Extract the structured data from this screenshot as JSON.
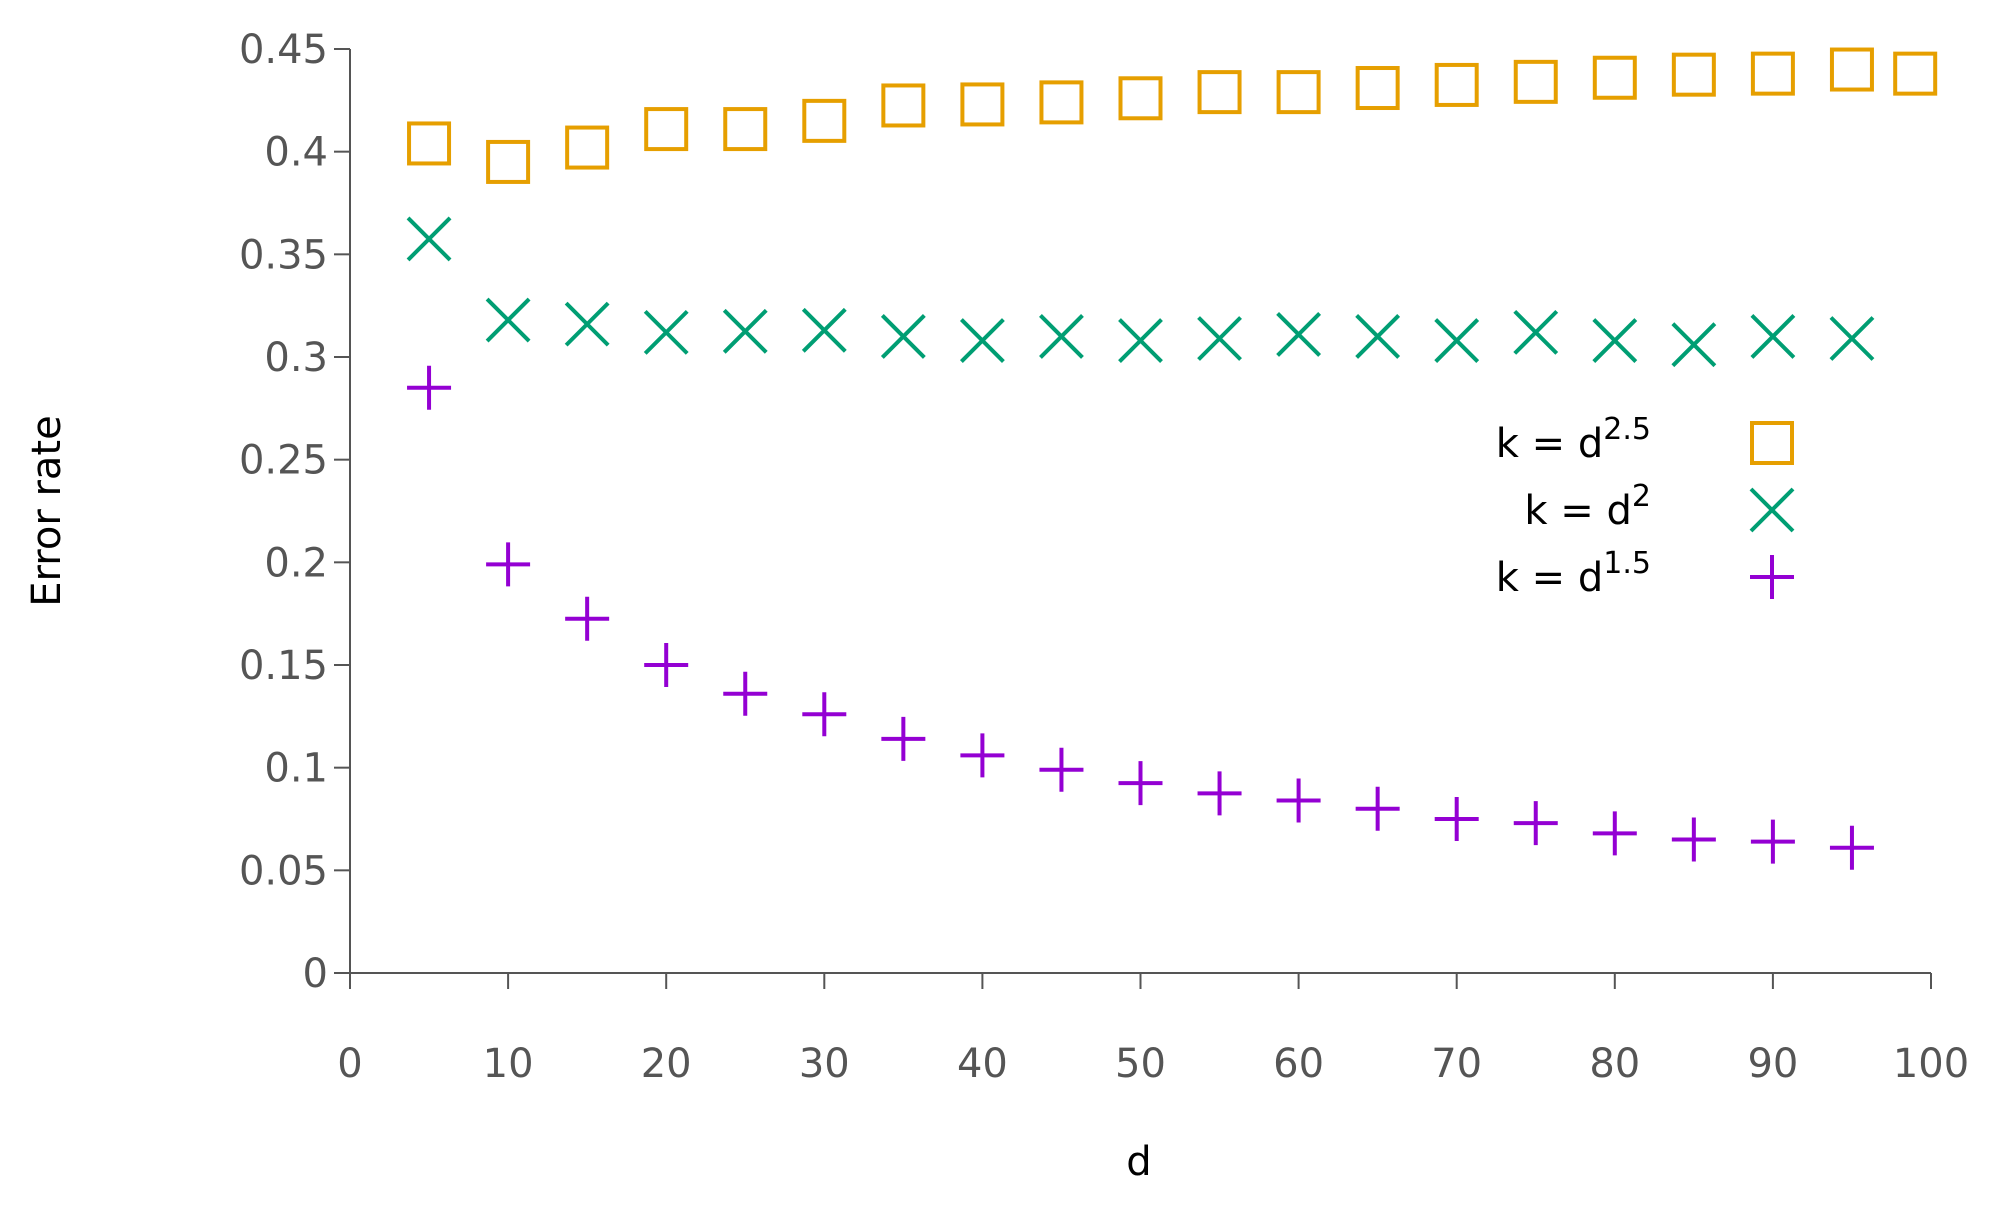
{
  "chart_data": {
    "type": "scatter",
    "xlabel": "d",
    "ylabel": "Error rate",
    "xlim": [
      0,
      100
    ],
    "ylim": [
      0,
      0.45
    ],
    "xticks": [
      0,
      10,
      20,
      30,
      40,
      50,
      60,
      70,
      80,
      90,
      100
    ],
    "yticks": [
      0,
      0.05,
      0.1,
      0.15,
      0.2,
      0.25,
      0.3,
      0.35,
      0.4,
      0.45
    ],
    "legend": "right",
    "series": [
      {
        "name": "k = d",
        "exponent": "2.5",
        "marker": "square",
        "color": "#e69f00",
        "x": [
          5,
          10,
          15,
          20,
          25,
          30,
          35,
          40,
          45,
          50,
          55,
          60,
          65,
          70,
          75,
          80,
          85,
          90,
          95,
          99
        ],
        "values": [
          0.404,
          0.395,
          0.402,
          0.411,
          0.411,
          0.415,
          0.4225,
          0.423,
          0.424,
          0.426,
          0.429,
          0.429,
          0.431,
          0.4325,
          0.434,
          0.436,
          0.4375,
          0.438,
          0.44,
          0.438
        ]
      },
      {
        "name": "k = d",
        "exponent": "2",
        "marker": "cross",
        "color": "#009e73",
        "x": [
          5,
          10,
          15,
          20,
          25,
          30,
          35,
          40,
          45,
          50,
          55,
          60,
          65,
          70,
          75,
          80,
          85,
          90,
          95
        ],
        "values": [
          0.3575,
          0.318,
          0.316,
          0.312,
          0.3125,
          0.313,
          0.31,
          0.308,
          0.31,
          0.308,
          0.309,
          0.311,
          0.31,
          0.308,
          0.312,
          0.308,
          0.306,
          0.31,
          0.309
        ]
      },
      {
        "name": "k = d",
        "exponent": "1.5",
        "marker": "plus",
        "color": "#9400d3",
        "x": [
          5,
          10,
          15,
          20,
          25,
          30,
          35,
          40,
          45,
          50,
          55,
          60,
          65,
          70,
          75,
          80,
          85,
          90,
          95
        ],
        "values": [
          0.285,
          0.199,
          0.1725,
          0.15,
          0.136,
          0.126,
          0.114,
          0.106,
          0.099,
          0.0925,
          0.0875,
          0.084,
          0.08,
          0.075,
          0.073,
          0.068,
          0.065,
          0.064,
          0.061
        ]
      }
    ]
  }
}
